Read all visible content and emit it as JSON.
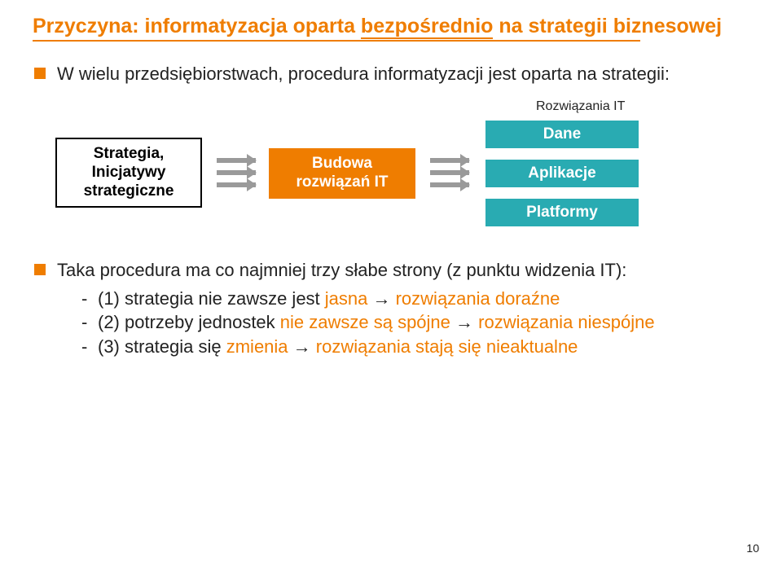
{
  "colors": {
    "orange": "#ef7d00",
    "teal": "#29abb2",
    "gray": "#9a9a9a",
    "black": "#222222"
  },
  "title_pre": "Przyczyna: informatyzacja oparta ",
  "title_under": "bezpośrednio",
  "title_post": " na strategii biznesowej",
  "b1": "W wielu przedsiębiorstwach, procedura informatyzacji jest oparta na strategii:",
  "flow_caption": "Rozwiązania IT",
  "box_strategia": "Strategia,\nInicjatywy\nstrategiczne",
  "box_budowa": "Budowa\nrozwiązań IT",
  "box_dane": "Dane",
  "box_aplikacje": "Aplikacje",
  "box_platformy": "Platformy",
  "b2": "Taka procedura ma co najmniej trzy słabe strony (z punktu widzenia IT):",
  "sub1_pre": "(1) strategia nie zawsze jest ",
  "sub1_hl": "jasna",
  "sub1_mid": " → ",
  "sub1_hl2": "rozwiązania doraźne",
  "sub2_pre": "(2) potrzeby jednostek ",
  "sub2_hl": "nie zawsze są spójne",
  "sub2_mid": " → ",
  "sub2_hl2": "rozwiązania niespójne",
  "sub3_pre": "(3) strategia się ",
  "sub3_hl": "zmienia",
  "sub3_mid": " → ",
  "sub3_hl2": "rozwiązania stają się nieaktualne",
  "page": "10"
}
